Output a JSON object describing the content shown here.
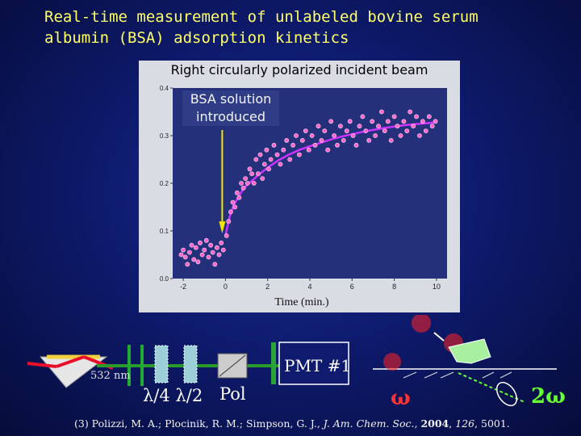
{
  "title": {
    "line1": "Real-time measurement of unlabeled bovine serum",
    "line2": "albumin (BSA) adsorption kinetics"
  },
  "chart_data": {
    "type": "scatter",
    "title": "Right circularly polarized incident beam",
    "xlabel": "Time (min.)",
    "ylabel": "",
    "xlim": [
      -2.5,
      10.5
    ],
    "ylim": [
      0.0,
      0.4
    ],
    "x_ticks": [
      "-2",
      "0",
      "2",
      "4",
      "6",
      "8",
      "10"
    ],
    "y_ticks": [
      "0.0",
      "0.1",
      "0.2",
      "0.3",
      "0.4"
    ],
    "annotation": {
      "line1": "BSA solution",
      "line2": "introduced",
      "arrow_x": 0
    },
    "series": [
      {
        "kind": "points",
        "color": "#ff66cc",
        "x": [
          -2.1,
          -2.0,
          -1.9,
          -1.8,
          -1.7,
          -1.6,
          -1.5,
          -1.4,
          -1.3,
          -1.2,
          -1.1,
          -1.0,
          -0.9,
          -0.8,
          -0.7,
          -0.6,
          -0.5,
          -0.4,
          -0.3,
          -0.2,
          -0.1,
          0.05,
          0.15,
          0.25,
          0.35,
          0.45,
          0.55,
          0.65,
          0.75,
          0.85,
          0.95,
          1.05,
          1.15,
          1.25,
          1.35,
          1.45,
          1.55,
          1.65,
          1.75,
          1.85,
          1.95,
          2.05,
          2.15,
          2.3,
          2.45,
          2.6,
          2.75,
          2.9,
          3.05,
          3.2,
          3.35,
          3.5,
          3.65,
          3.8,
          3.95,
          4.1,
          4.25,
          4.4,
          4.55,
          4.7,
          4.85,
          5.0,
          5.15,
          5.3,
          5.45,
          5.6,
          5.75,
          5.9,
          6.05,
          6.2,
          6.35,
          6.5,
          6.65,
          6.8,
          6.95,
          7.1,
          7.25,
          7.4,
          7.55,
          7.7,
          7.85,
          8.0,
          8.15,
          8.3,
          8.45,
          8.6,
          8.75,
          8.9,
          9.05,
          9.2,
          9.35,
          9.5,
          9.65,
          9.8,
          9.95
        ],
        "y": [
          0.05,
          0.06,
          0.045,
          0.03,
          0.055,
          0.07,
          0.04,
          0.065,
          0.035,
          0.075,
          0.05,
          0.06,
          0.08,
          0.045,
          0.07,
          0.055,
          0.03,
          0.065,
          0.05,
          0.075,
          0.06,
          0.09,
          0.12,
          0.14,
          0.16,
          0.15,
          0.18,
          0.17,
          0.2,
          0.19,
          0.21,
          0.2,
          0.23,
          0.22,
          0.2,
          0.25,
          0.22,
          0.26,
          0.21,
          0.24,
          0.27,
          0.23,
          0.25,
          0.28,
          0.26,
          0.24,
          0.27,
          0.29,
          0.25,
          0.28,
          0.3,
          0.26,
          0.29,
          0.31,
          0.27,
          0.3,
          0.28,
          0.32,
          0.29,
          0.31,
          0.27,
          0.33,
          0.3,
          0.28,
          0.32,
          0.29,
          0.31,
          0.33,
          0.3,
          0.28,
          0.32,
          0.34,
          0.31,
          0.29,
          0.33,
          0.3,
          0.32,
          0.35,
          0.31,
          0.33,
          0.29,
          0.34,
          0.32,
          0.3,
          0.33,
          0.31,
          0.35,
          0.32,
          0.34,
          0.3,
          0.33,
          0.31,
          0.34,
          0.32,
          0.33
        ]
      },
      {
        "kind": "fit",
        "color": "#cc33ff",
        "x": [
          0.0,
          0.2,
          0.4,
          0.6,
          0.8,
          1.0,
          1.5,
          2.0,
          2.5,
          3.0,
          3.5,
          4.0,
          4.5,
          5.0,
          5.5,
          6.0,
          6.5,
          7.0,
          7.5,
          8.0,
          8.5,
          9.0,
          9.5,
          10.0
        ],
        "y": [
          0.09,
          0.13,
          0.155,
          0.17,
          0.185,
          0.195,
          0.215,
          0.233,
          0.248,
          0.26,
          0.27,
          0.278,
          0.285,
          0.292,
          0.298,
          0.303,
          0.308,
          0.312,
          0.316,
          0.319,
          0.322,
          0.324,
          0.326,
          0.328
        ]
      }
    ]
  },
  "schematic": {
    "pmt_label": "PMT #1",
    "wavelength_label": "532 nm",
    "quarter_wave_label": "λ/4",
    "half_wave_label": "λ/2",
    "pol_label": "Pol",
    "omega_label": "ω",
    "two_omega_label": "2ω",
    "beam_color": "#e8102a",
    "sh_color": "#66ff33"
  },
  "reference": {
    "prefix": "(3) Polizzi, M. A.; Plocinik, R. M.; Simpson, G. J., ",
    "journal": "J. Am. Chem. Soc.",
    "comma": ", ",
    "year": "2004",
    "comma2": ", ",
    "volume": "126",
    "suffix": ", 5001."
  }
}
